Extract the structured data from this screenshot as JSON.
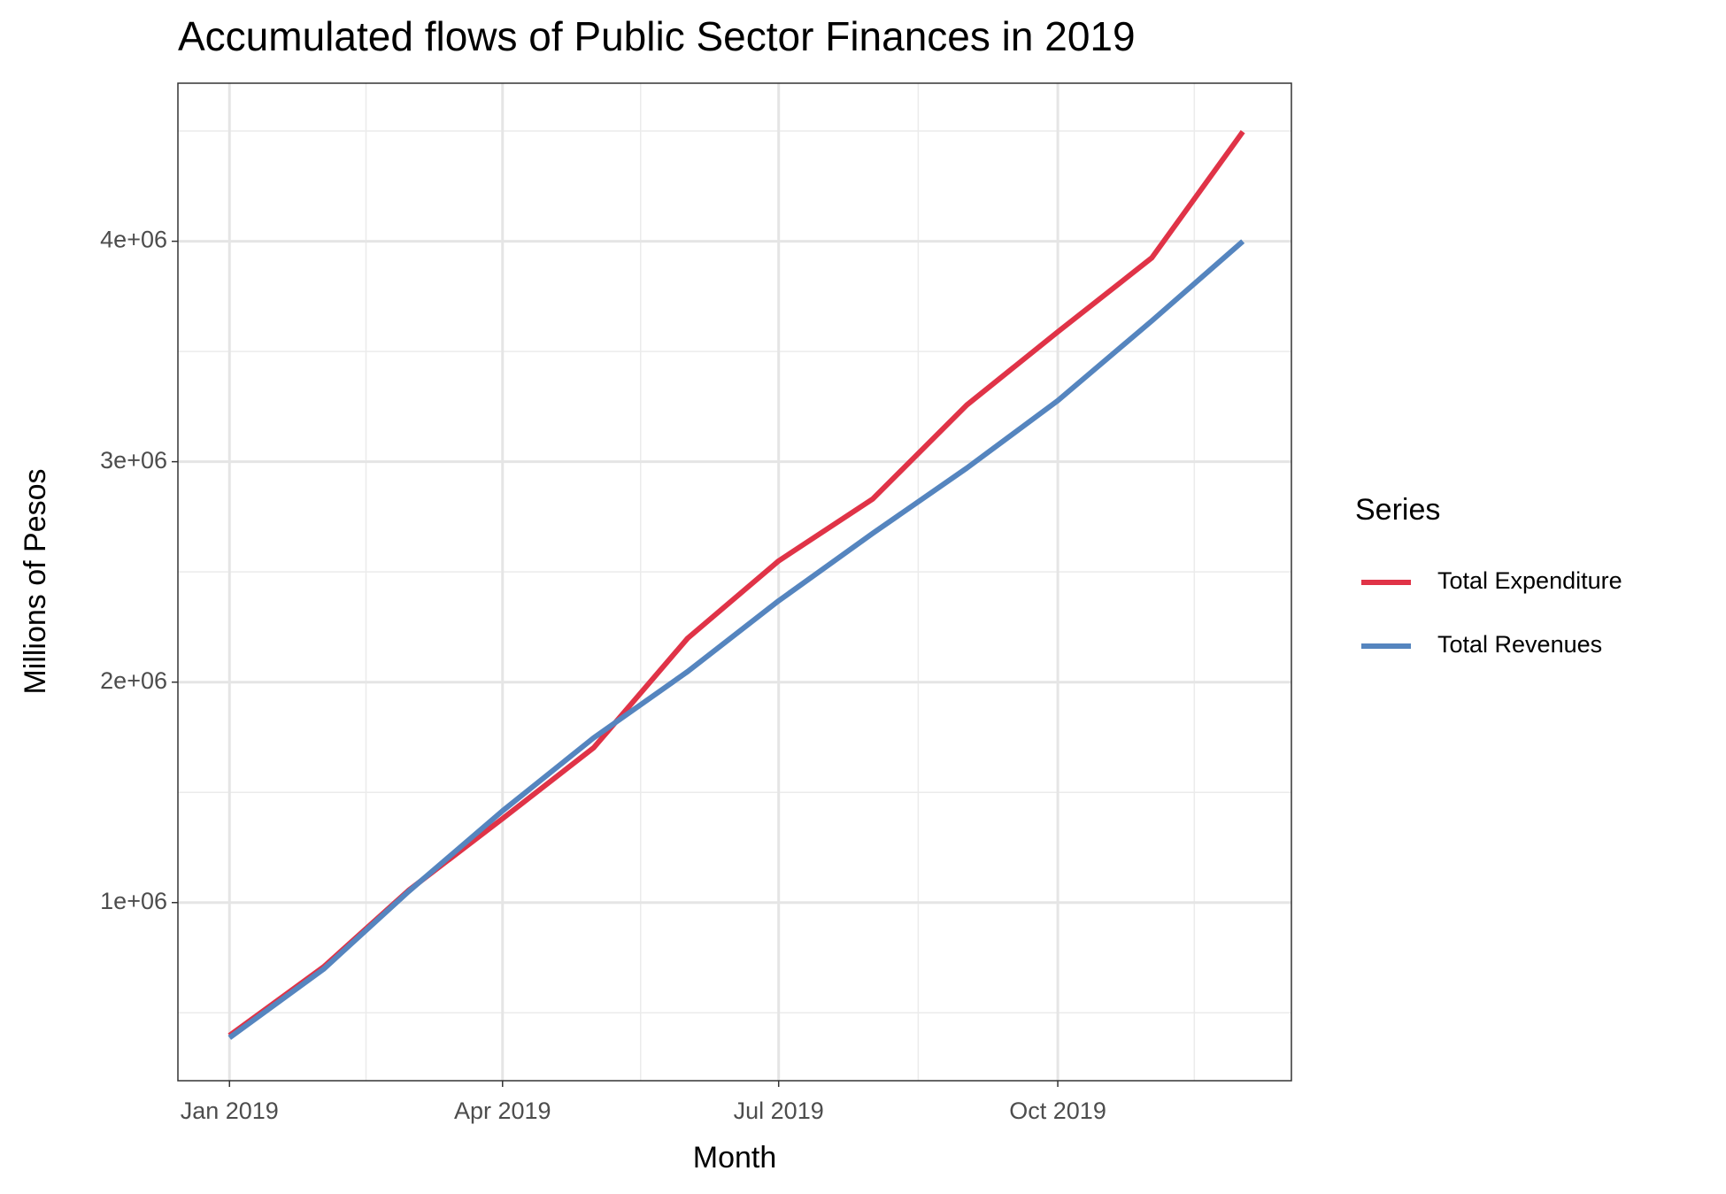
{
  "chart_data": {
    "type": "line",
    "title": "Accumulated flows of Public Sector Finances in 2019",
    "x_label": "Month",
    "y_label": "Millions of Pesos",
    "x": [
      "2019-01",
      "2019-02",
      "2019-03",
      "2019-04",
      "2019-05",
      "2019-06",
      "2019-07",
      "2019-08",
      "2019-09",
      "2019-10",
      "2019-11",
      "2019-12"
    ],
    "series": [
      {
        "name": "Total Expenditure",
        "color": "#e03347",
        "values": [
          397000,
          708000,
          1055000,
          1381000,
          1702000,
          2199000,
          2550000,
          2831000,
          3257000,
          3589000,
          3925000,
          4497000
        ]
      },
      {
        "name": "Total Revenues",
        "color": "#5585bf",
        "values": [
          387000,
          698000,
          1050000,
          1416000,
          1747000,
          2048000,
          2369000,
          2675000,
          2971000,
          3277000,
          3639000,
          4000000
        ]
      }
    ],
    "legend_title": "Series",
    "legend": "right",
    "xlim": [
      "2018-12-15",
      "2019-12-17"
    ],
    "xticks": [
      {
        "value": "2019-01",
        "label": "Jan 2019"
      },
      {
        "value": "2019-04",
        "label": "Apr 2019"
      },
      {
        "value": "2019-07",
        "label": "Jul 2019"
      },
      {
        "value": "2019-10",
        "label": "Oct 2019"
      }
    ],
    "ylim": [
      192000,
      4717000
    ],
    "yticks": [
      {
        "value": 1000000,
        "label": "1e+06"
      },
      {
        "value": 2000000,
        "label": "2e+06"
      },
      {
        "value": 3000000,
        "label": "3e+06"
      },
      {
        "value": 4000000,
        "label": "4e+06"
      }
    ],
    "grid": true,
    "minor_grid": true
  }
}
